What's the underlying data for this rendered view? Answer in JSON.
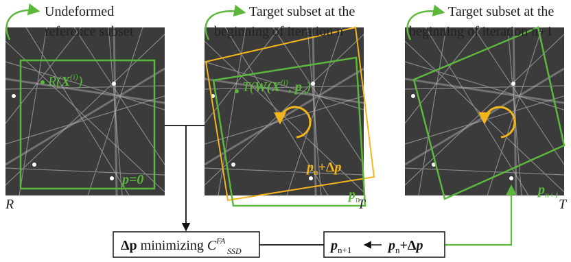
{
  "panels": [
    {
      "caption": [
        "Undeformed",
        "reference subset"
      ],
      "image_label": "R",
      "point_label": [
        "R(",
        "X",
        "(i)",
        ")"
      ],
      "subset_label": [
        "p=0"
      ]
    },
    {
      "caption": [
        "Target subset at the",
        "beginning of iteration n"
      ],
      "image_label": "T",
      "point_label": [
        "T(",
        "W(X",
        "(i)",
        ", ",
        "p",
        "n",
        ")"
      ],
      "update_label": [
        "p",
        "n",
        "+Δ",
        "p"
      ],
      "subset_label": [
        "p",
        "n"
      ]
    },
    {
      "caption": [
        "Target subset at the",
        "beginning of iteration n+1"
      ],
      "image_label": "T",
      "subset_label": [
        "p",
        "n+1"
      ]
    }
  ],
  "boxes": [
    {
      "parts": [
        "Δp",
        " minimizing ",
        "C",
        "FA",
        "SSD"
      ]
    },
    {
      "parts": [
        "p",
        "n+1",
        "p",
        "n",
        "+Δ",
        "p"
      ]
    }
  ]
}
